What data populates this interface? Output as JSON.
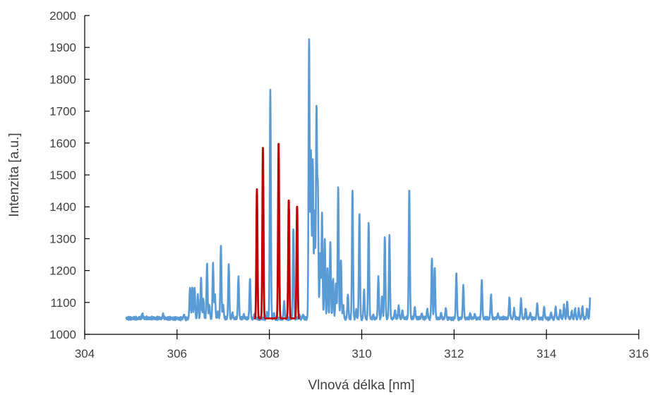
{
  "chart_data": {
    "type": "line",
    "title": "",
    "xlabel": "Vlnová délka [nm]",
    "ylabel": "Intenzita [a.u.]",
    "xlim": [
      304,
      316
    ],
    "ylim": [
      1000,
      2000
    ],
    "xticks": [
      304,
      306,
      308,
      310,
      312,
      314,
      316
    ],
    "yticks": [
      1000,
      1100,
      1200,
      1300,
      1400,
      1500,
      1600,
      1700,
      1800,
      1900,
      2000
    ],
    "grid": false,
    "legend": "none",
    "baseline": 1050,
    "x_range": [
      304.9,
      314.95
    ],
    "series": [
      {
        "color": "#5b9bd5",
        "peaks": [
          [
            305.25,
            1065
          ],
          [
            305.7,
            1062
          ],
          [
            306.15,
            1060
          ],
          [
            306.28,
            1145
          ],
          [
            306.33,
            1148
          ],
          [
            306.38,
            1148
          ],
          [
            306.45,
            1125
          ],
          [
            306.52,
            1178
          ],
          [
            306.57,
            1110
          ],
          [
            306.65,
            1220
          ],
          [
            306.7,
            1090
          ],
          [
            306.78,
            1220
          ],
          [
            306.82,
            1125
          ],
          [
            306.88,
            1070
          ],
          [
            306.95,
            1280
          ],
          [
            307.0,
            1090
          ],
          [
            307.12,
            1220
          ],
          [
            307.2,
            1065
          ],
          [
            307.33,
            1180
          ],
          [
            307.45,
            1060
          ],
          [
            307.58,
            1175
          ],
          [
            307.68,
            1060
          ],
          [
            307.95,
            1068
          ],
          [
            308.02,
            1765
          ],
          [
            308.1,
            1065
          ],
          [
            308.32,
            1105
          ],
          [
            308.52,
            1335
          ],
          [
            308.65,
            1060
          ],
          [
            308.73,
            1060
          ],
          [
            308.86,
            1925
          ],
          [
            308.9,
            1575
          ],
          [
            308.94,
            1545
          ],
          [
            308.98,
            1380
          ],
          [
            309.02,
            1700
          ],
          [
            309.05,
            1450
          ],
          [
            309.1,
            1255
          ],
          [
            309.14,
            1375
          ],
          [
            309.2,
            1300
          ],
          [
            309.26,
            1210
          ],
          [
            309.32,
            1290
          ],
          [
            309.38,
            1175
          ],
          [
            309.44,
            1160
          ],
          [
            309.49,
            1462
          ],
          [
            309.55,
            1235
          ],
          [
            309.6,
            1090
          ],
          [
            309.7,
            1125
          ],
          [
            309.8,
            1452
          ],
          [
            309.88,
            1075
          ],
          [
            309.95,
            1380
          ],
          [
            310.05,
            1140
          ],
          [
            310.15,
            1352
          ],
          [
            310.25,
            1060
          ],
          [
            310.36,
            1180
          ],
          [
            310.44,
            1120
          ],
          [
            310.5,
            1310
          ],
          [
            310.6,
            1310
          ],
          [
            310.72,
            1075
          ],
          [
            310.8,
            1090
          ],
          [
            310.88,
            1075
          ],
          [
            311.03,
            1455
          ],
          [
            311.15,
            1085
          ],
          [
            311.3,
            1065
          ],
          [
            311.42,
            1080
          ],
          [
            311.52,
            1240
          ],
          [
            311.58,
            1212
          ],
          [
            311.72,
            1065
          ],
          [
            311.82,
            1080
          ],
          [
            312.05,
            1190
          ],
          [
            312.2,
            1152
          ],
          [
            312.35,
            1065
          ],
          [
            312.45,
            1060
          ],
          [
            312.6,
            1170
          ],
          [
            312.8,
            1125
          ],
          [
            312.95,
            1060
          ],
          [
            313.2,
            1115
          ],
          [
            313.3,
            1078
          ],
          [
            313.45,
            1110
          ],
          [
            313.55,
            1080
          ],
          [
            313.65,
            1065
          ],
          [
            313.8,
            1095
          ],
          [
            313.95,
            1085
          ],
          [
            314.1,
            1068
          ],
          [
            314.2,
            1085
          ],
          [
            314.3,
            1075
          ],
          [
            314.38,
            1090
          ],
          [
            314.45,
            1103
          ],
          [
            314.55,
            1070
          ],
          [
            314.62,
            1080
          ],
          [
            314.7,
            1078
          ],
          [
            314.78,
            1085
          ],
          [
            314.88,
            1080
          ],
          [
            314.95,
            1118
          ]
        ]
      },
      {
        "color": "#c00000",
        "peaks": [
          [
            307.73,
            1455
          ],
          [
            307.86,
            1592
          ],
          [
            308.2,
            1605
          ],
          [
            308.42,
            1425
          ],
          [
            308.6,
            1405
          ]
        ]
      }
    ]
  }
}
